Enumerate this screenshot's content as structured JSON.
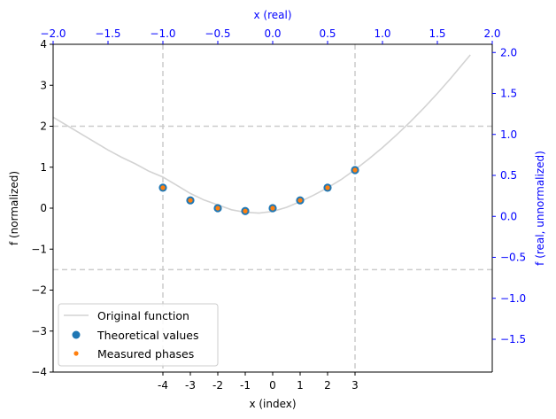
{
  "chart_data": {
    "type": "scatter",
    "xlabel_bottom": "x (index)",
    "xlabel_top": "x (real)",
    "ylabel_left": "f (normalized)",
    "ylabel_right": "f (real, unnormalized)",
    "ylim_left": [
      -4,
      4
    ],
    "left_yticks": [
      "−4",
      "−3",
      "−2",
      "−1",
      "0",
      "1",
      "2",
      "3",
      "4"
    ],
    "top_xlim": [
      -2,
      2
    ],
    "top_xticks": [
      "−2.0",
      "−1.5",
      "−1.0",
      "−0.5",
      "0.0",
      "0.5",
      "1.0",
      "1.5",
      "2.0"
    ],
    "right_ylim": [
      -1.9,
      2.1
    ],
    "right_yticks": [
      "−1.5",
      "−1.0",
      "−0.5",
      "0.0",
      "0.5",
      "1.0",
      "1.5",
      "2.0"
    ],
    "bottom_xticks": [
      "-4",
      "-3",
      "-2",
      "-1",
      "0",
      "1",
      "2",
      "3"
    ],
    "ref_lines": {
      "vertical_real_x": [
        -1.0,
        0.75
      ],
      "horizontal_normalized_y": [
        2.0,
        -1.5
      ]
    },
    "series": [
      {
        "name": "Original function",
        "kind": "line",
        "color": "#d3d3d3",
        "x": [
          -2.0,
          -1.875,
          -1.75,
          -1.625,
          -1.5,
          -1.375,
          -1.25,
          -1.125,
          -1.0,
          -0.875,
          -0.75,
          -0.625,
          -0.5,
          -0.375,
          -0.25,
          -0.125,
          0.0,
          0.125,
          0.25,
          0.375,
          0.5,
          0.625,
          0.75,
          0.875,
          1.0,
          1.125,
          1.25,
          1.375,
          1.5,
          1.625,
          1.75,
          1.8
        ],
        "y": [
          1.21,
          1.11,
          1.01,
          0.91,
          0.81,
          0.72,
          0.64,
          0.55,
          0.48,
          0.38,
          0.28,
          0.2,
          0.14,
          0.08,
          0.05,
          0.04,
          0.06,
          0.11,
          0.18,
          0.26,
          0.35,
          0.45,
          0.57,
          0.7,
          0.84,
          0.99,
          1.15,
          1.32,
          1.5,
          1.69,
          1.89,
          1.97
        ]
      },
      {
        "name": "Theoretical values",
        "kind": "scatter",
        "color": "#1f77b4",
        "x": [
          -4,
          -3,
          -2,
          -1,
          0,
          1,
          2,
          3
        ],
        "y": [
          0.5,
          0.19,
          0.0,
          -0.07,
          0.0,
          0.19,
          0.5,
          0.93
        ]
      },
      {
        "name": "Measured phases",
        "kind": "scatter",
        "color": "#ff7f0e",
        "x": [
          -4,
          -3,
          -2,
          -1,
          0,
          1,
          2,
          3
        ],
        "y": [
          0.5,
          0.19,
          0.0,
          -0.07,
          0.0,
          0.19,
          0.5,
          0.93
        ]
      }
    ],
    "legend_position": "lower-left",
    "colors": {
      "right_axis": "#0000ff",
      "top_axis": "#0000ff",
      "ref_line": "#cccccc"
    }
  }
}
